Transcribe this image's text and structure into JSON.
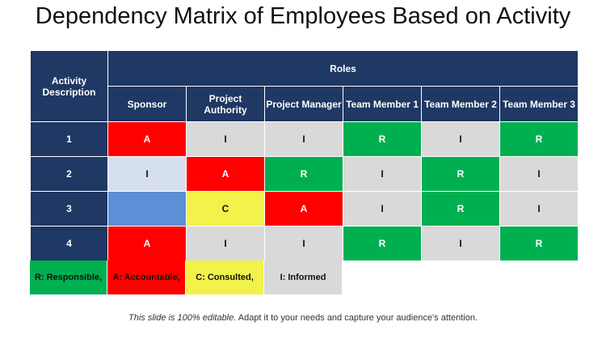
{
  "title": "Dependency Matrix of Employees Based on Activity",
  "header": {
    "activity_label": "Activity Description",
    "roles_label": "Roles",
    "columns": [
      "Sponsor",
      "Project Authority",
      "Project Manager",
      "Team Member 1",
      "Team Member 2",
      "Team Member 3"
    ]
  },
  "rows": [
    {
      "label": "1",
      "cells": [
        "A",
        "I",
        "I",
        "R",
        "I",
        "R"
      ]
    },
    {
      "label": "2",
      "cells": [
        "I",
        "A",
        "R",
        "I",
        "R",
        "I"
      ]
    },
    {
      "label": "3",
      "cells": [
        "",
        "C",
        "A",
        "I",
        "R",
        "I"
      ]
    },
    {
      "label": "4",
      "cells": [
        "A",
        "I",
        "I",
        "R",
        "I",
        "R"
      ]
    }
  ],
  "legend": [
    {
      "text": "R: Responsible,",
      "color": "#00b050"
    },
    {
      "text": "A: Accountable,",
      "color": "#ff0000"
    },
    {
      "text": "C: Consulted,",
      "color": "#f2f24a"
    },
    {
      "text": "I: Informed",
      "color": "#d9d9d9"
    }
  ],
  "footer": {
    "italic": "This slide is 100% editable.",
    "rest": " Adapt it to your needs and capture your audience's attention."
  },
  "colors": {
    "header": "#1f3864",
    "responsible": "#00b050",
    "accountable": "#ff0000",
    "consulted": "#f2f24a",
    "informed": "#d9d9d9",
    "row2_sponsor": "#d6dff0",
    "row3_sponsor": "#5b8fd6"
  }
}
